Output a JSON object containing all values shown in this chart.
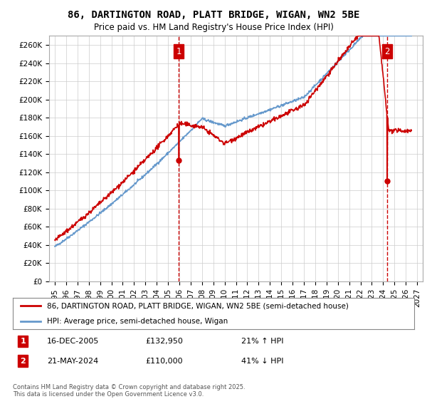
{
  "title": "86, DARTINGTON ROAD, PLATT BRIDGE, WIGAN, WN2 5BE",
  "subtitle": "Price paid vs. HM Land Registry's House Price Index (HPI)",
  "ylabel_ticks": [
    "£0",
    "£20K",
    "£40K",
    "£60K",
    "£80K",
    "£100K",
    "£120K",
    "£140K",
    "£160K",
    "£180K",
    "£200K",
    "£220K",
    "£240K",
    "£260K"
  ],
  "ytick_values": [
    0,
    20000,
    40000,
    60000,
    80000,
    100000,
    120000,
    140000,
    160000,
    180000,
    200000,
    220000,
    240000,
    260000
  ],
  "ylim": [
    0,
    270000
  ],
  "xlim_start": 1994.5,
  "xlim_end": 2027.5,
  "xticks": [
    1995,
    1996,
    1997,
    1998,
    1999,
    2000,
    2001,
    2002,
    2003,
    2004,
    2005,
    2006,
    2007,
    2008,
    2009,
    2010,
    2011,
    2012,
    2013,
    2014,
    2015,
    2016,
    2017,
    2018,
    2019,
    2020,
    2021,
    2022,
    2023,
    2024,
    2025,
    2026,
    2027
  ],
  "vline1_x": 2005.96,
  "vline2_x": 2024.38,
  "marker1_x": 2005.96,
  "marker1_y": 132950,
  "marker2_x": 2024.38,
  "marker2_y": 110000,
  "legend_line1": "86, DARTINGTON ROAD, PLATT BRIDGE, WIGAN, WN2 5BE (semi-detached house)",
  "legend_line2": "HPI: Average price, semi-detached house, Wigan",
  "annotation1_label": "1",
  "annotation1_date": "16-DEC-2005",
  "annotation1_price": "£132,950",
  "annotation1_hpi": "21% ↑ HPI",
  "annotation2_label": "2",
  "annotation2_date": "21-MAY-2024",
  "annotation2_price": "£110,000",
  "annotation2_hpi": "41% ↓ HPI",
  "footer": "Contains HM Land Registry data © Crown copyright and database right 2025.\nThis data is licensed under the Open Government Licence v3.0.",
  "line_color_red": "#cc0000",
  "line_color_blue": "#6699cc",
  "background_color": "#ffffff",
  "grid_color": "#cccccc",
  "vline_color": "#cc0000"
}
